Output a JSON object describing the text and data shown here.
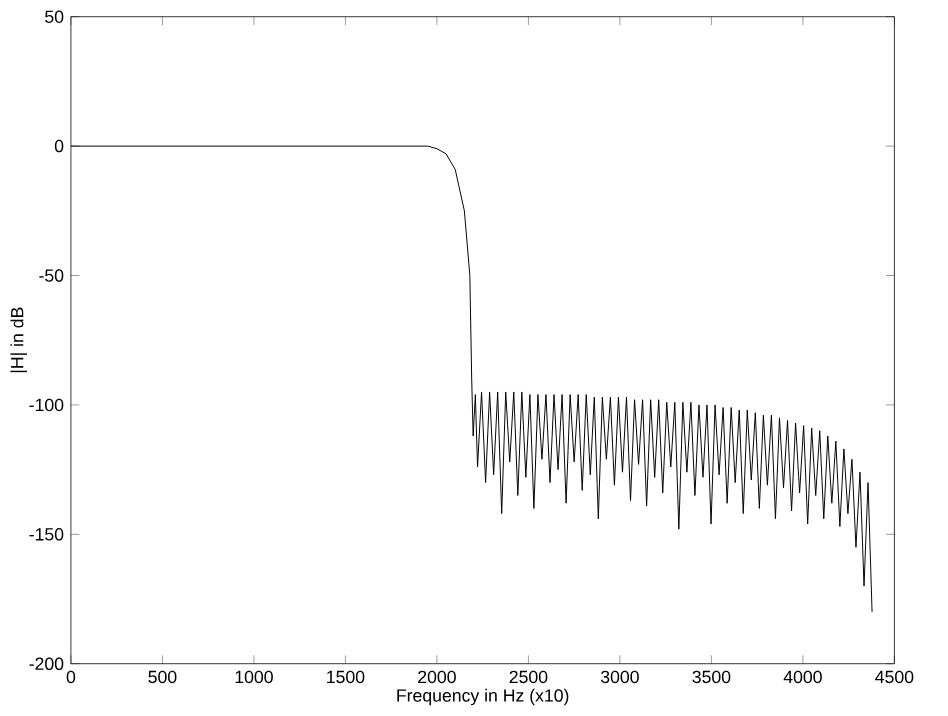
{
  "chart_data": {
    "type": "line",
    "xlabel": "Frequency in Hz (x10)",
    "ylabel": "|H| in dB",
    "xlim": [
      0,
      4500
    ],
    "ylim": [
      -200,
      50
    ],
    "xticks": [
      0,
      500,
      1000,
      1500,
      2000,
      2500,
      3000,
      3500,
      4000,
      4500
    ],
    "yticks": [
      -200,
      -150,
      -100,
      -50,
      0,
      50
    ],
    "grid": false,
    "marker": "none",
    "line_style": "solid",
    "series": [
      {
        "color": "#000000",
        "x": [
          0,
          500,
          1000,
          1500,
          1950,
          2000,
          2050,
          2100,
          2150,
          2180,
          2190,
          2198,
          2210,
          2222,
          2244,
          2266,
          2288,
          2310,
          2332,
          2354,
          2376,
          2398,
          2420,
          2442,
          2464,
          2486,
          2508,
          2530,
          2552,
          2574,
          2596,
          2618,
          2640,
          2662,
          2684,
          2706,
          2728,
          2750,
          2772,
          2794,
          2816,
          2838,
          2860,
          2882,
          2904,
          2926,
          2948,
          2970,
          2992,
          3014,
          3036,
          3058,
          3080,
          3102,
          3124,
          3146,
          3168,
          3190,
          3212,
          3234,
          3256,
          3278,
          3300,
          3322,
          3344,
          3366,
          3388,
          3410,
          3432,
          3454,
          3476,
          3498,
          3520,
          3542,
          3564,
          3586,
          3608,
          3630,
          3652,
          3674,
          3696,
          3718,
          3740,
          3762,
          3784,
          3806,
          3828,
          3850,
          3872,
          3894,
          3916,
          3938,
          3960,
          3982,
          4004,
          4026,
          4048,
          4070,
          4092,
          4114,
          4136,
          4158,
          4180,
          4202,
          4224,
          4246,
          4268,
          4290,
          4312,
          4334,
          4356,
          4378
        ],
        "values": [
          0,
          0,
          0,
          0,
          0,
          -1,
          -3,
          -9,
          -25,
          -50,
          -90,
          -112,
          -96,
          -124,
          -95,
          -130,
          -95,
          -127,
          -95,
          -142,
          -95,
          -122,
          -95,
          -135,
          -95,
          -128,
          -96,
          -140,
          -96,
          -121,
          -96,
          -130,
          -96,
          -125,
          -96,
          -138,
          -96,
          -122,
          -96,
          -133,
          -96,
          -127,
          -97,
          -144,
          -97,
          -121,
          -97,
          -131,
          -97,
          -126,
          -97,
          -137,
          -98,
          -123,
          -98,
          -139,
          -98,
          -128,
          -98,
          -134,
          -99,
          -124,
          -99,
          -148,
          -99,
          -126,
          -99,
          -135,
          -100,
          -128,
          -100,
          -146,
          -100,
          -127,
          -101,
          -138,
          -101,
          -130,
          -102,
          -142,
          -102,
          -129,
          -103,
          -140,
          -104,
          -131,
          -104,
          -144,
          -105,
          -132,
          -106,
          -141,
          -107,
          -134,
          -108,
          -146,
          -109,
          -135,
          -110,
          -144,
          -112,
          -138,
          -114,
          -147,
          -117,
          -142,
          -121,
          -155,
          -126,
          -170,
          -130,
          -180
        ]
      }
    ]
  }
}
